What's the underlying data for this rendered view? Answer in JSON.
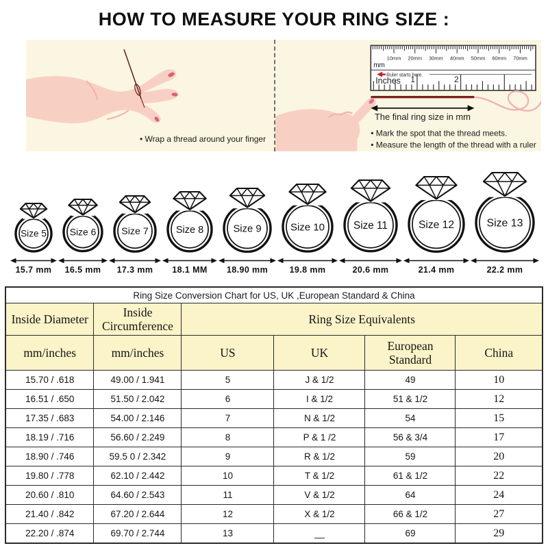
{
  "page_title": "HOW TO MEASURE YOUR RING SIZE :",
  "instructions": {
    "left_caption": "• Wrap a thread around your finger",
    "right_captions": [
      "• Mark the spot that the thread meets.",
      "• Measure the length of the thread with a ruler"
    ],
    "ruler": {
      "mm_labels": [
        "10mm",
        "20mm",
        "30mm",
        "40mm",
        "50mm",
        "60mm",
        "70mm"
      ],
      "mm_unit_label": "mm",
      "starts_here_label": "Ruler starts here.",
      "inches_label": "Inches",
      "inch_tick_labels": [
        "1",
        "2"
      ],
      "final_size_caption": "The final ring size in mm"
    }
  },
  "rings": [
    {
      "label": "Size 5",
      "diameter_mm": "15.7 mm"
    },
    {
      "label": "Size 6",
      "diameter_mm": "16.5 mm"
    },
    {
      "label": "Size 7",
      "diameter_mm": "17.3 mm"
    },
    {
      "label": "Size 8",
      "diameter_mm": "18.1 MM"
    },
    {
      "label": "Size 9",
      "diameter_mm": "18.90 mm"
    },
    {
      "label": "Size 10",
      "diameter_mm": "19.8 mm"
    },
    {
      "label": "Size 11",
      "diameter_mm": "20.6 mm"
    },
    {
      "label": "Size 12",
      "diameter_mm": "21.4 mm"
    },
    {
      "label": "Size 13",
      "diameter_mm": "22.2 mm"
    }
  ],
  "conversion_table": {
    "title": "Ring Size Conversion Chart for US, UK ,European Standard & China",
    "group_headers": [
      "Inside Diameter",
      "Inside Circumference",
      "Ring Size Equivalents"
    ],
    "column_headers": [
      "mm/inches",
      "mm/inches",
      "US",
      "UK",
      "European Standard",
      "China"
    ],
    "rows": [
      [
        "15.70 / .618",
        "49.00 / 1.941",
        "5",
        "J & 1/2",
        "49",
        "10"
      ],
      [
        "16.51 / .650",
        "51.50 / 2.042",
        "6",
        "I & 1/2",
        "51 & 1/2",
        "12"
      ],
      [
        "17.35 / .683",
        "54.00 / 2.146",
        "7",
        "N & 1/2",
        "54",
        "15"
      ],
      [
        "18.19 / .716",
        "56.60 / 2.249",
        "8",
        "P & 1 /2",
        "56 & 3/4",
        "17"
      ],
      [
        "18.90 / .746",
        "59.5 0 / 2.342",
        "9",
        "R & 1/2",
        "59",
        "20"
      ],
      [
        "19.80 / .778",
        "62.10 / 2.442",
        "10",
        "T & 1/2",
        "61 & 1/2",
        "22"
      ],
      [
        "20.60 / .810",
        "64.60 / 2.543",
        "11",
        "V & 1/2",
        "64",
        "24"
      ],
      [
        "21.40 / .842",
        "67.20 / 2.644",
        "12",
        "X & 1/2",
        "66 & 1/2",
        "27"
      ],
      [
        "22.20 / .874",
        "69.70 / 2.744",
        "13",
        "__",
        "69",
        "29"
      ]
    ]
  },
  "colors": {
    "panel_background": "#FBF6E2",
    "table_header_background": "#FAF4C8",
    "thread_dark": "#7A2222",
    "thread_light": "#EFB3B3",
    "marker_red": "#C2202C",
    "skin": "#F8D0C3",
    "skin_shadow": "#F3B5A6",
    "nail_pink": "#D95F7E",
    "line_black": "#1A1A1A"
  }
}
